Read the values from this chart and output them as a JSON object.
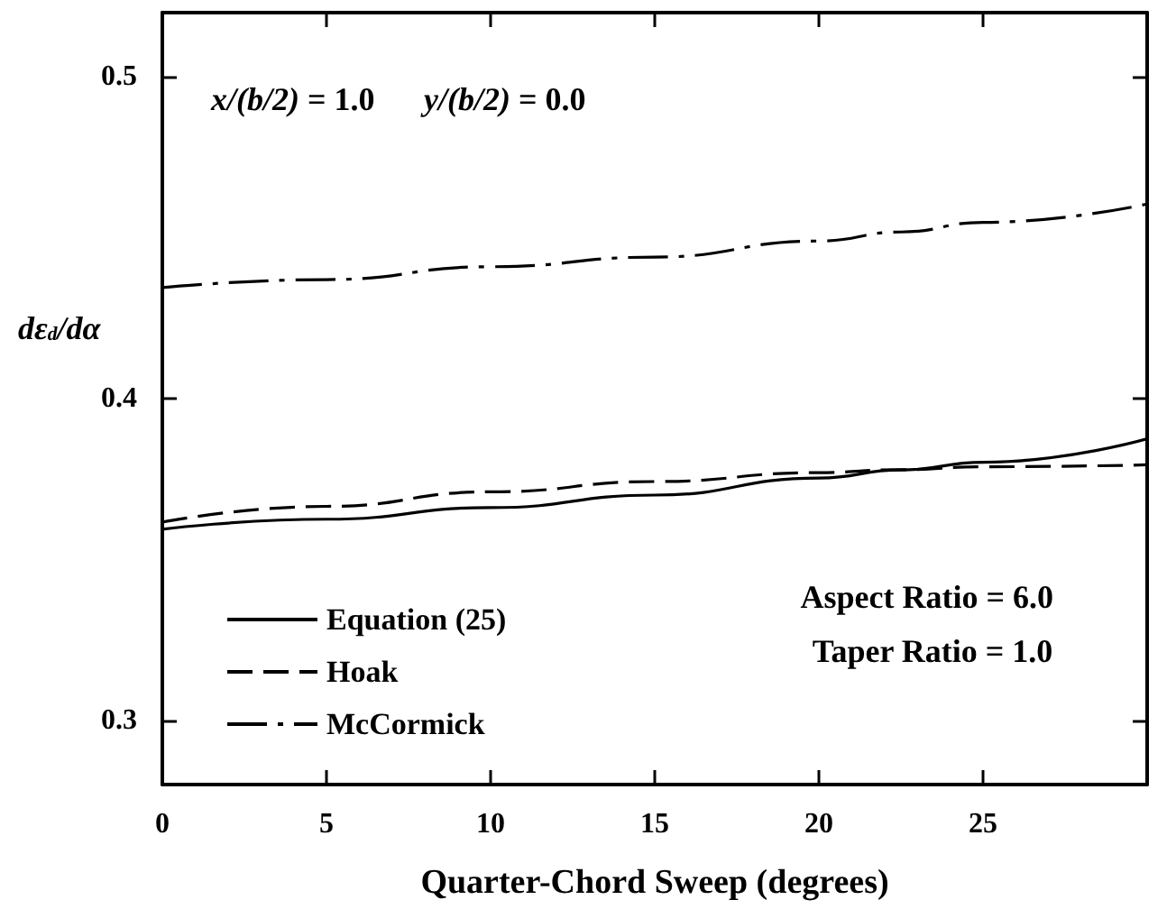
{
  "chart_data": {
    "type": "line",
    "xlabel": "Quarter-Chord Sweep (degrees)",
    "ylabel": "dε$_{d}$/dα",
    "x": [
      0,
      5,
      10,
      15,
      20,
      22.5,
      25,
      30
    ],
    "series": [
      {
        "name": "Equation (25)",
        "color": "#000000",
        "line_style": "solid",
        "values": [
          0.3594,
          0.3625,
          0.3661,
          0.37,
          0.3753,
          0.3778,
          0.3802,
          0.3875
        ]
      },
      {
        "name": "Hoak",
        "color": "#000000",
        "line_style": "dashed",
        "values": [
          0.3616,
          0.3665,
          0.371,
          0.3742,
          0.377,
          0.3779,
          0.3788,
          0.3794
        ]
      },
      {
        "name": "McCormick",
        "color": "#000000",
        "line_style": "dashdot",
        "values": [
          0.4345,
          0.437,
          0.441,
          0.444,
          0.449,
          0.4518,
          0.4548,
          0.4605
        ]
      }
    ],
    "xlim": [
      0,
      30
    ],
    "xticks": [
      0,
      5,
      10,
      15,
      20,
      25
    ],
    "ylim": [
      0.28,
      0.52
    ],
    "yticks": [
      0.3,
      0.4,
      0.5
    ],
    "grid": false,
    "legend": "bottom left",
    "marker": "none",
    "annotations": [
      "x/(b/2) = 1.0",
      "y/(b/2) = 0.0",
      "Aspect Ratio = 6.0",
      "Taper Ratio = 1.0"
    ]
  }
}
